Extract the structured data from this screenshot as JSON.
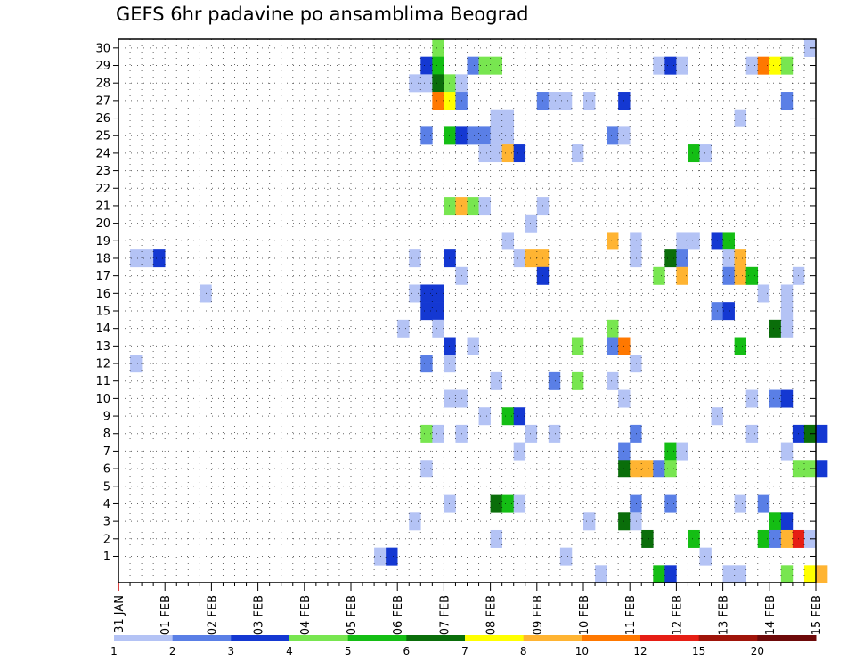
{
  "chart_data": {
    "type": "heatmap",
    "title": "GEFS 6hr padavine po ansamblima Beograd",
    "xlabel": "",
    "ylabel": "",
    "x_tick_labels": [
      "31 JAN",
      "01 FEB",
      "02 FEB",
      "03 FEB",
      "04 FEB",
      "05 FEB",
      "06 FEB",
      "07 FEB",
      "08 FEB",
      "09 FEB",
      "10 FEB",
      "11 FEB",
      "12 FEB",
      "13 FEB",
      "14 FEB",
      "15 FEB"
    ],
    "y_tick_labels": [
      "1",
      "2",
      "3",
      "4",
      "5",
      "6",
      "7",
      "8",
      "9",
      "10",
      "11",
      "12",
      "13",
      "14",
      "15",
      "16",
      "17",
      "18",
      "19",
      "20",
      "21",
      "22",
      "23",
      "24",
      "25",
      "26",
      "27",
      "28",
      "29",
      "30"
    ],
    "x_step": "6 h",
    "members_range": [
      1,
      30
    ],
    "grid": "dotted",
    "legend": {
      "placement": "bottom",
      "levels": [
        1,
        2,
        3,
        4,
        5,
        6,
        7,
        8,
        10,
        12,
        15,
        20
      ],
      "colors": [
        "#b4c3f5",
        "#5a7fe6",
        "#1438d2",
        "#78e650",
        "#14be14",
        "#0a6e0a",
        "#ffff00",
        "#ffb432",
        "#ff7800",
        "#e61e14",
        "#a0140a",
        "#6e0a0a"
      ]
    },
    "cells": [
      {
        "member": 30,
        "step": 27,
        "color": "#78e650"
      },
      {
        "member": 30,
        "step": 59,
        "color": "#b4c3f5"
      },
      {
        "member": 29,
        "step": 26,
        "color": "#1438d2"
      },
      {
        "member": 29,
        "step": 27,
        "color": "#14be14"
      },
      {
        "member": 29,
        "step": 30,
        "color": "#5a7fe6"
      },
      {
        "member": 29,
        "step": 31,
        "color": "#78e650"
      },
      {
        "member": 29,
        "step": 32,
        "color": "#78e650"
      },
      {
        "member": 29,
        "step": 46,
        "color": "#b4c3f5"
      },
      {
        "member": 29,
        "step": 47,
        "color": "#1438d2"
      },
      {
        "member": 29,
        "step": 48,
        "color": "#b4c3f5"
      },
      {
        "member": 29,
        "step": 54,
        "color": "#b4c3f5"
      },
      {
        "member": 29,
        "step": 55,
        "color": "#ff7800"
      },
      {
        "member": 29,
        "step": 56,
        "color": "#ffff00"
      },
      {
        "member": 29,
        "step": 57,
        "color": "#78e650"
      },
      {
        "member": 28,
        "step": 25,
        "color": "#b4c3f5"
      },
      {
        "member": 28,
        "step": 26,
        "color": "#b4c3f5"
      },
      {
        "member": 28,
        "step": 27,
        "color": "#0a6e0a"
      },
      {
        "member": 28,
        "step": 28,
        "color": "#78e650"
      },
      {
        "member": 28,
        "step": 29,
        "color": "#b4c3f5"
      },
      {
        "member": 27,
        "step": 27,
        "color": "#ff7800"
      },
      {
        "member": 27,
        "step": 28,
        "color": "#ffff00"
      },
      {
        "member": 27,
        "step": 29,
        "color": "#5a7fe6"
      },
      {
        "member": 27,
        "step": 36,
        "color": "#5a7fe6"
      },
      {
        "member": 27,
        "step": 37,
        "color": "#b4c3f5"
      },
      {
        "member": 27,
        "step": 38,
        "color": "#b4c3f5"
      },
      {
        "member": 27,
        "step": 40,
        "color": "#b4c3f5"
      },
      {
        "member": 27,
        "step": 43,
        "color": "#1438d2"
      },
      {
        "member": 27,
        "step": 57,
        "color": "#5a7fe6"
      },
      {
        "member": 26,
        "step": 32,
        "color": "#b4c3f5"
      },
      {
        "member": 26,
        "step": 33,
        "color": "#b4c3f5"
      },
      {
        "member": 26,
        "step": 53,
        "color": "#b4c3f5"
      },
      {
        "member": 25,
        "step": 26,
        "color": "#5a7fe6"
      },
      {
        "member": 25,
        "step": 28,
        "color": "#14be14"
      },
      {
        "member": 25,
        "step": 29,
        "color": "#1438d2"
      },
      {
        "member": 25,
        "step": 30,
        "color": "#5a7fe6"
      },
      {
        "member": 25,
        "step": 31,
        "color": "#5a7fe6"
      },
      {
        "member": 25,
        "step": 32,
        "color": "#b4c3f5"
      },
      {
        "member": 25,
        "step": 33,
        "color": "#b4c3f5"
      },
      {
        "member": 25,
        "step": 42,
        "color": "#5a7fe6"
      },
      {
        "member": 25,
        "step": 43,
        "color": "#b4c3f5"
      },
      {
        "member": 24,
        "step": 31,
        "color": "#b4c3f5"
      },
      {
        "member": 24,
        "step": 32,
        "color": "#b4c3f5"
      },
      {
        "member": 24,
        "step": 33,
        "color": "#ffb432"
      },
      {
        "member": 24,
        "step": 34,
        "color": "#1438d2"
      },
      {
        "member": 24,
        "step": 39,
        "color": "#b4c3f5"
      },
      {
        "member": 24,
        "step": 49,
        "color": "#14be14"
      },
      {
        "member": 24,
        "step": 50,
        "color": "#b4c3f5"
      },
      {
        "member": 21,
        "step": 28,
        "color": "#78e650"
      },
      {
        "member": 21,
        "step": 29,
        "color": "#ffb432"
      },
      {
        "member": 21,
        "step": 30,
        "color": "#78e650"
      },
      {
        "member": 21,
        "step": 31,
        "color": "#b4c3f5"
      },
      {
        "member": 21,
        "step": 36,
        "color": "#b4c3f5"
      },
      {
        "member": 20,
        "step": 35,
        "color": "#b4c3f5"
      },
      {
        "member": 19,
        "step": 33,
        "color": "#b4c3f5"
      },
      {
        "member": 19,
        "step": 42,
        "color": "#ffb432"
      },
      {
        "member": 19,
        "step": 44,
        "color": "#b4c3f5"
      },
      {
        "member": 19,
        "step": 48,
        "color": "#b4c3f5"
      },
      {
        "member": 19,
        "step": 49,
        "color": "#b4c3f5"
      },
      {
        "member": 19,
        "step": 51,
        "color": "#1438d2"
      },
      {
        "member": 19,
        "step": 52,
        "color": "#14be14"
      },
      {
        "member": 18,
        "step": 1,
        "color": "#b4c3f5"
      },
      {
        "member": 18,
        "step": 2,
        "color": "#b4c3f5"
      },
      {
        "member": 18,
        "step": 3,
        "color": "#1438d2"
      },
      {
        "member": 18,
        "step": 25,
        "color": "#b4c3f5"
      },
      {
        "member": 18,
        "step": 28,
        "color": "#1438d2"
      },
      {
        "member": 18,
        "step": 34,
        "color": "#b4c3f5"
      },
      {
        "member": 18,
        "step": 35,
        "color": "#ffb432"
      },
      {
        "member": 18,
        "step": 36,
        "color": "#ffb432"
      },
      {
        "member": 18,
        "step": 44,
        "color": "#b4c3f5"
      },
      {
        "member": 18,
        "step": 47,
        "color": "#0a6e0a"
      },
      {
        "member": 18,
        "step": 48,
        "color": "#5a7fe6"
      },
      {
        "member": 18,
        "step": 52,
        "color": "#b4c3f5"
      },
      {
        "member": 18,
        "step": 53,
        "color": "#ffb432"
      },
      {
        "member": 17,
        "step": 29,
        "color": "#b4c3f5"
      },
      {
        "member": 17,
        "step": 36,
        "color": "#1438d2"
      },
      {
        "member": 17,
        "step": 46,
        "color": "#78e650"
      },
      {
        "member": 17,
        "step": 48,
        "color": "#ffb432"
      },
      {
        "member": 17,
        "step": 52,
        "color": "#5a7fe6"
      },
      {
        "member": 17,
        "step": 53,
        "color": "#ffb432"
      },
      {
        "member": 17,
        "step": 54,
        "color": "#14be14"
      },
      {
        "member": 17,
        "step": 58,
        "color": "#b4c3f5"
      },
      {
        "member": 16,
        "step": 7,
        "color": "#b4c3f5"
      },
      {
        "member": 16,
        "step": 25,
        "color": "#b4c3f5"
      },
      {
        "member": 16,
        "step": 26,
        "color": "#1438d2"
      },
      {
        "member": 16,
        "step": 27,
        "color": "#1438d2"
      },
      {
        "member": 16,
        "step": 55,
        "color": "#b4c3f5"
      },
      {
        "member": 16,
        "step": 57,
        "color": "#b4c3f5"
      },
      {
        "member": 15,
        "step": 26,
        "color": "#1438d2"
      },
      {
        "member": 15,
        "step": 27,
        "color": "#1438d2"
      },
      {
        "member": 15,
        "step": 51,
        "color": "#5a7fe6"
      },
      {
        "member": 15,
        "step": 52,
        "color": "#1438d2"
      },
      {
        "member": 15,
        "step": 57,
        "color": "#b4c3f5"
      },
      {
        "member": 14,
        "step": 24,
        "color": "#b4c3f5"
      },
      {
        "member": 14,
        "step": 27,
        "color": "#b4c3f5"
      },
      {
        "member": 14,
        "step": 42,
        "color": "#78e650"
      },
      {
        "member": 14,
        "step": 56,
        "color": "#0a6e0a"
      },
      {
        "member": 14,
        "step": 57,
        "color": "#b4c3f5"
      },
      {
        "member": 13,
        "step": 28,
        "color": "#1438d2"
      },
      {
        "member": 13,
        "step": 30,
        "color": "#b4c3f5"
      },
      {
        "member": 13,
        "step": 39,
        "color": "#78e650"
      },
      {
        "member": 13,
        "step": 42,
        "color": "#5a7fe6"
      },
      {
        "member": 13,
        "step": 43,
        "color": "#ff7800"
      },
      {
        "member": 13,
        "step": 53,
        "color": "#14be14"
      },
      {
        "member": 12,
        "step": 1,
        "color": "#b4c3f5"
      },
      {
        "member": 12,
        "step": 26,
        "color": "#5a7fe6"
      },
      {
        "member": 12,
        "step": 28,
        "color": "#b4c3f5"
      },
      {
        "member": 12,
        "step": 44,
        "color": "#b4c3f5"
      },
      {
        "member": 11,
        "step": 32,
        "color": "#b4c3f5"
      },
      {
        "member": 11,
        "step": 37,
        "color": "#5a7fe6"
      },
      {
        "member": 11,
        "step": 39,
        "color": "#78e650"
      },
      {
        "member": 11,
        "step": 42,
        "color": "#b4c3f5"
      },
      {
        "member": 10,
        "step": 28,
        "color": "#b4c3f5"
      },
      {
        "member": 10,
        "step": 29,
        "color": "#b4c3f5"
      },
      {
        "member": 10,
        "step": 43,
        "color": "#b4c3f5"
      },
      {
        "member": 10,
        "step": 54,
        "color": "#b4c3f5"
      },
      {
        "member": 10,
        "step": 56,
        "color": "#5a7fe6"
      },
      {
        "member": 10,
        "step": 57,
        "color": "#1438d2"
      },
      {
        "member": 9,
        "step": 31,
        "color": "#b4c3f5"
      },
      {
        "member": 9,
        "step": 33,
        "color": "#14be14"
      },
      {
        "member": 9,
        "step": 34,
        "color": "#1438d2"
      },
      {
        "member": 9,
        "step": 51,
        "color": "#b4c3f5"
      },
      {
        "member": 8,
        "step": 26,
        "color": "#78e650"
      },
      {
        "member": 8,
        "step": 27,
        "color": "#b4c3f5"
      },
      {
        "member": 8,
        "step": 29,
        "color": "#b4c3f5"
      },
      {
        "member": 8,
        "step": 35,
        "color": "#b4c3f5"
      },
      {
        "member": 8,
        "step": 37,
        "color": "#b4c3f5"
      },
      {
        "member": 8,
        "step": 44,
        "color": "#5a7fe6"
      },
      {
        "member": 8,
        "step": 54,
        "color": "#b4c3f5"
      },
      {
        "member": 8,
        "step": 58,
        "color": "#1438d2"
      },
      {
        "member": 8,
        "step": 59,
        "color": "#0a6e0a"
      },
      {
        "member": 8,
        "step": 60,
        "color": "#1438d2"
      },
      {
        "member": 7,
        "step": 34,
        "color": "#b4c3f5"
      },
      {
        "member": 7,
        "step": 43,
        "color": "#5a7fe6"
      },
      {
        "member": 7,
        "step": 47,
        "color": "#14be14"
      },
      {
        "member": 7,
        "step": 48,
        "color": "#b4c3f5"
      },
      {
        "member": 7,
        "step": 57,
        "color": "#b4c3f5"
      },
      {
        "member": 6,
        "step": 26,
        "color": "#b4c3f5"
      },
      {
        "member": 6,
        "step": 43,
        "color": "#0a6e0a"
      },
      {
        "member": 6,
        "step": 44,
        "color": "#ffb432"
      },
      {
        "member": 6,
        "step": 45,
        "color": "#ffb432"
      },
      {
        "member": 6,
        "step": 46,
        "color": "#5a7fe6"
      },
      {
        "member": 6,
        "step": 47,
        "color": "#78e650"
      },
      {
        "member": 6,
        "step": 58,
        "color": "#78e650"
      },
      {
        "member": 6,
        "step": 59,
        "color": "#78e650"
      },
      {
        "member": 6,
        "step": 60,
        "color": "#1438d2"
      },
      {
        "member": 4,
        "step": 28,
        "color": "#b4c3f5"
      },
      {
        "member": 4,
        "step": 32,
        "color": "#0a6e0a"
      },
      {
        "member": 4,
        "step": 33,
        "color": "#14be14"
      },
      {
        "member": 4,
        "step": 34,
        "color": "#b4c3f5"
      },
      {
        "member": 4,
        "step": 44,
        "color": "#5a7fe6"
      },
      {
        "member": 4,
        "step": 47,
        "color": "#5a7fe6"
      },
      {
        "member": 4,
        "step": 53,
        "color": "#b4c3f5"
      },
      {
        "member": 4,
        "step": 55,
        "color": "#5a7fe6"
      },
      {
        "member": 3,
        "step": 25,
        "color": "#b4c3f5"
      },
      {
        "member": 3,
        "step": 40,
        "color": "#b4c3f5"
      },
      {
        "member": 3,
        "step": 43,
        "color": "#0a6e0a"
      },
      {
        "member": 3,
        "step": 44,
        "color": "#b4c3f5"
      },
      {
        "member": 3,
        "step": 56,
        "color": "#14be14"
      },
      {
        "member": 3,
        "step": 57,
        "color": "#1438d2"
      },
      {
        "member": 2,
        "step": 32,
        "color": "#b4c3f5"
      },
      {
        "member": 2,
        "step": 45,
        "color": "#0a6e0a"
      },
      {
        "member": 2,
        "step": 49,
        "color": "#14be14"
      },
      {
        "member": 2,
        "step": 55,
        "color": "#14be14"
      },
      {
        "member": 2,
        "step": 56,
        "color": "#5a7fe6"
      },
      {
        "member": 2,
        "step": 57,
        "color": "#ffb432"
      },
      {
        "member": 2,
        "step": 58,
        "color": "#e61e14"
      },
      {
        "member": 2,
        "step": 59,
        "color": "#b4c3f5"
      },
      {
        "member": 1,
        "step": 22,
        "color": "#b4c3f5"
      },
      {
        "member": 1,
        "step": 23,
        "color": "#1438d2"
      },
      {
        "member": 1,
        "step": 38,
        "color": "#b4c3f5"
      },
      {
        "member": 1,
        "step": 50,
        "color": "#b4c3f5"
      },
      {
        "member": 0,
        "step": 41,
        "color": "#b4c3f5"
      },
      {
        "member": 0,
        "step": 46,
        "color": "#14be14"
      },
      {
        "member": 0,
        "step": 47,
        "color": "#1438d2"
      },
      {
        "member": 0,
        "step": 52,
        "color": "#b4c3f5"
      },
      {
        "member": 0,
        "step": 53,
        "color": "#b4c3f5"
      },
      {
        "member": 0,
        "step": 57,
        "color": "#78e650"
      },
      {
        "member": 0,
        "step": 59,
        "color": "#ffff00"
      },
      {
        "member": 0,
        "step": 60,
        "color": "#ffb432"
      }
    ]
  }
}
